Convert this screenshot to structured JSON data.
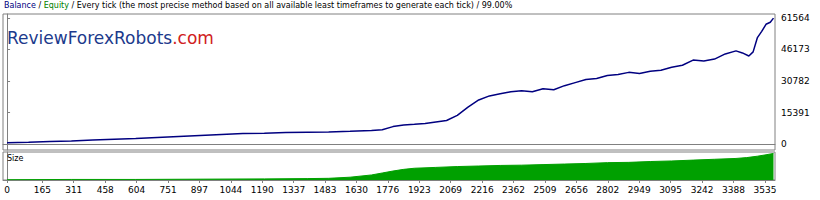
{
  "chart_data": [
    {
      "type": "line",
      "title": "Balance / Equity / Every tick (the most precise method based on all available least timeframes to generate each tick) / 99.00%",
      "annotation": "ReviewForexRobots.com",
      "color": "#000080",
      "x": [
        0,
        100,
        200,
        300,
        400,
        500,
        600,
        700,
        800,
        900,
        1000,
        1100,
        1200,
        1300,
        1400,
        1500,
        1600,
        1700,
        1750,
        1800,
        1850,
        1900,
        1950,
        2000,
        2050,
        2100,
        2150,
        2200,
        2250,
        2300,
        2350,
        2400,
        2450,
        2500,
        2550,
        2600,
        2650,
        2700,
        2750,
        2800,
        2850,
        2900,
        2950,
        3000,
        3050,
        3100,
        3150,
        3200,
        3250,
        3300,
        3350,
        3400,
        3430,
        3460,
        3480,
        3500,
        3520,
        3540,
        3560,
        3575
      ],
      "values": [
        600,
        800,
        1200,
        1500,
        1900,
        2300,
        2700,
        3200,
        3700,
        4200,
        4700,
        5100,
        5300,
        5600,
        5800,
        5900,
        6200,
        6600,
        7000,
        8500,
        9300,
        9600,
        10000,
        10800,
        11500,
        14000,
        18000,
        21500,
        23500,
        24500,
        25500,
        26000,
        25500,
        27000,
        26500,
        28500,
        30000,
        31500,
        32000,
        33500,
        34000,
        35000,
        34500,
        35500,
        36000,
        37500,
        38500,
        41000,
        40500,
        41500,
        44000,
        45500,
        44500,
        43000,
        45000,
        52000,
        55000,
        58500,
        59500,
        61500
      ],
      "xlim": [
        -19,
        3582
      ],
      "ylim": [
        -2930,
        63516
      ],
      "yticks": [
        0,
        15391,
        30782,
        46173,
        61564
      ],
      "grid": false,
      "tick_labels": "y"
    },
    {
      "type": "area",
      "title": "Size",
      "color": "#00a000",
      "x": [
        0,
        300,
        600,
        900,
        1200,
        1400,
        1500,
        1600,
        1700,
        1750,
        1800,
        1850,
        1900,
        2000,
        2100,
        2200,
        2300,
        2400,
        2500,
        2600,
        2700,
        2800,
        2900,
        3000,
        3100,
        3200,
        3300,
        3400,
        3450,
        3500,
        3540,
        3575
      ],
      "values": [
        1,
        2,
        2,
        3,
        4,
        5,
        6,
        10,
        18,
        25,
        32,
        38,
        42,
        45,
        48,
        50,
        52,
        53,
        55,
        57,
        59,
        62,
        63,
        66,
        68,
        71,
        74,
        77,
        80,
        85,
        90,
        95
      ],
      "xlim": [
        -19,
        3582
      ],
      "xticks": [
        0,
        165,
        311,
        458,
        604,
        751,
        897,
        1044,
        1190,
        1337,
        1483,
        1630,
        1776,
        1923,
        2069,
        2216,
        2362,
        2509,
        2656,
        2802,
        2949,
        3095,
        3242,
        3388,
        3535
      ],
      "ylim": [
        0,
        100
      ],
      "grid": false,
      "tick_labels": "x"
    }
  ]
}
